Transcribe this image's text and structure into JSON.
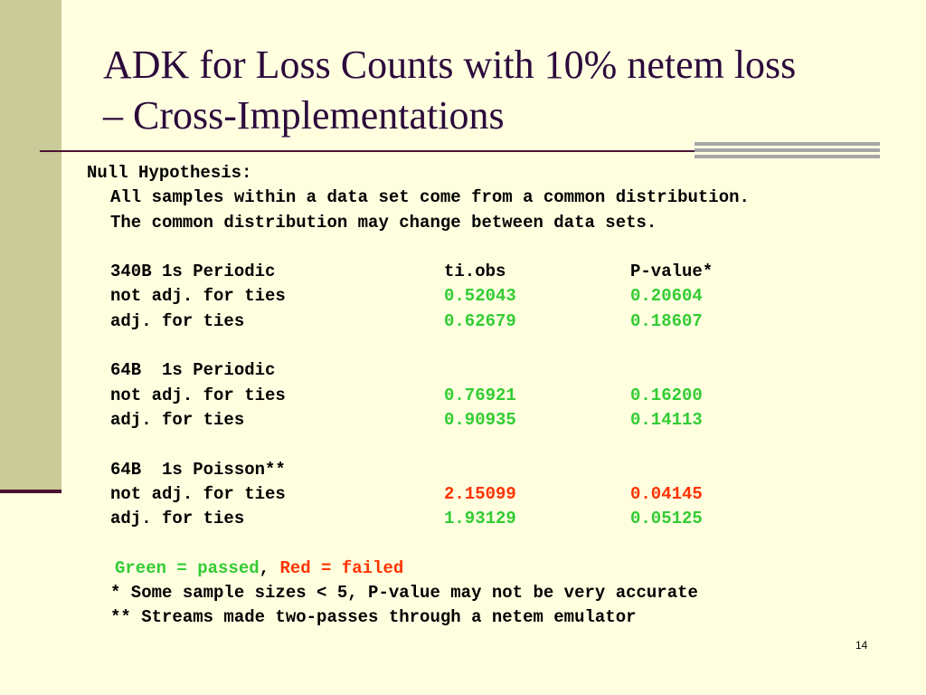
{
  "title": {
    "line1": "ADK for Loss Counts with 10% netem loss",
    "line2": "– Cross-Implementations"
  },
  "null_hypothesis": {
    "heading": "Null Hypothesis:",
    "line1": "All samples within a data set come from a common distribution.",
    "line2": "The common distribution may change between data sets."
  },
  "columns": {
    "tiobs": "ti.obs",
    "pvalue": "P-value*"
  },
  "groups": [
    {
      "label": "340B 1s Periodic",
      "rows": [
        {
          "label": "not adj. for ties",
          "tiobs": "0.52043",
          "pvalue": "0.20604"
        },
        {
          "label": "adj. for ties",
          "tiobs": "0.62679",
          "pvalue": "0.18607"
        }
      ]
    },
    {
      "label": "64B  1s Periodic",
      "rows": [
        {
          "label": "not adj. for ties",
          "tiobs": "0.76921",
          "pvalue": "0.16200"
        },
        {
          "label": "adj. for ties",
          "tiobs": "0.90935",
          "pvalue": "0.14113"
        }
      ]
    },
    {
      "label": "64B  1s Poisson**",
      "rows": [
        {
          "label": "not adj. for ties",
          "tiobs": "2.15099",
          "pvalue": "0.04145"
        },
        {
          "label": "adj. for ties",
          "tiobs": "1.93129",
          "pvalue": "0.05125"
        }
      ]
    }
  ],
  "legend": {
    "green": "Green = passed",
    "separator": ",",
    "red": "Red = failed"
  },
  "footnotes": {
    "note1": "* Some sample sizes < 5, P-value may not be very accurate",
    "note2": "** Streams made two-passes through a netem emulator"
  },
  "slide_number": "14",
  "colors": {
    "pass": "#33cc33",
    "fail": "#ff3300",
    "background": "#ffffe0",
    "title": "#2c0a3c"
  }
}
